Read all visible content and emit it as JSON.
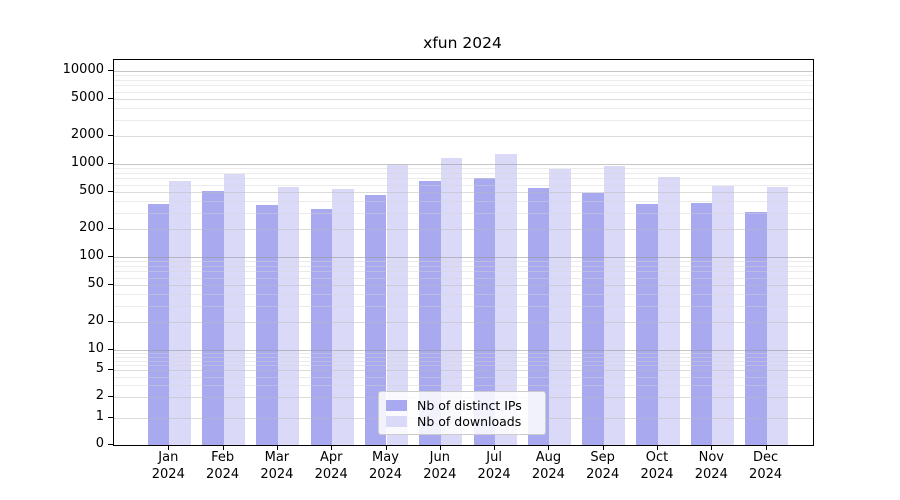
{
  "chart_data": {
    "type": "bar",
    "title": "xfun 2024",
    "categories": [
      "Jan",
      "Feb",
      "Mar",
      "Apr",
      "May",
      "Jun",
      "Jul",
      "Aug",
      "Sep",
      "Oct",
      "Nov",
      "Dec"
    ],
    "year_label": "2024",
    "series": [
      {
        "name": "Nb of distinct IPs",
        "color": "#a9a9f0",
        "values": [
          375,
          510,
          360,
          325,
          460,
          660,
          700,
          550,
          490,
          370,
          380,
          305
        ]
      },
      {
        "name": "Nb of downloads",
        "color": "#dadaf8",
        "values": [
          660,
          790,
          570,
          545,
          975,
          1170,
          1295,
          880,
          960,
          730,
          580,
          570
        ]
      }
    ],
    "xlabel": "",
    "ylabel": "",
    "yscale": "log (compressed below 10, linear 0–1 segment at baseline)",
    "yticks": [
      10000,
      5000,
      2000,
      1000,
      500,
      200,
      100,
      50,
      20,
      10,
      5,
      2,
      1,
      0
    ],
    "ylim": [
      0,
      12700
    ],
    "grid": "horizontal major + log minor gridlines, drawn over bars",
    "legend": {
      "position": "lower center",
      "labels": [
        "Nb of distinct IPs",
        "Nb of downloads"
      ]
    }
  },
  "style": {
    "background": "#ffffff",
    "axis_color": "#000000",
    "bar_ips_color": "#a9a9f0",
    "bar_downloads_color": "#dadaf8",
    "grid_major_color": "#c9c9c9",
    "grid_mid_color": "#dfdfdf",
    "grid_minor_color": "#ececec"
  }
}
